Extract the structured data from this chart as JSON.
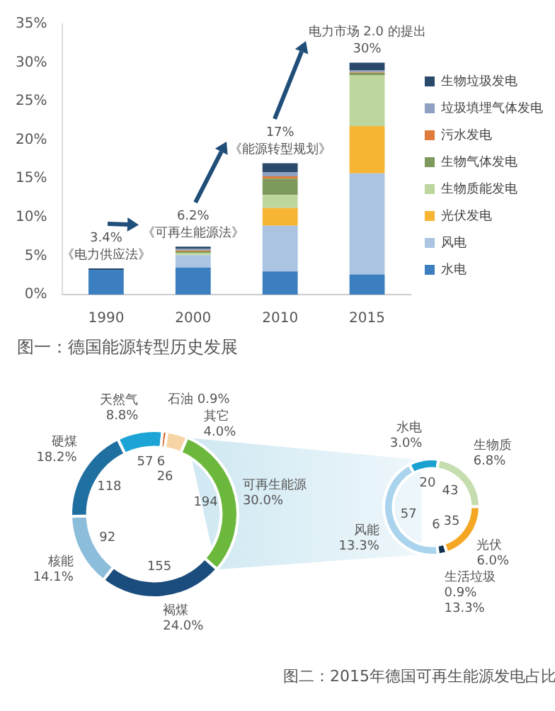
{
  "chart_data": [
    {
      "type": "bar",
      "title": "图一：德国能源转型历史发展",
      "categories": [
        "1990",
        "2000",
        "2010",
        "2015"
      ],
      "stacked": true,
      "legend": "right",
      "ylim": [
        0,
        35
      ],
      "yticks": [
        {
          "value": 0,
          "label": "0%"
        },
        {
          "value": 5,
          "label": "5%"
        },
        {
          "value": 10,
          "label": "10%"
        },
        {
          "value": 15,
          "label": "15%"
        },
        {
          "value": 20,
          "label": "20%"
        },
        {
          "value": 25,
          "label": "25%"
        },
        {
          "value": 30,
          "label": "30%"
        },
        {
          "value": 35,
          "label": "35%"
        }
      ],
      "series": [
        {
          "name": "水电",
          "color": "#3b7fc0",
          "values": [
            3.2,
            3.5,
            3.0,
            2.6
          ]
        },
        {
          "name": "风电",
          "color": "#aac4e2",
          "values": [
            0,
            1.6,
            5.9,
            13.1
          ]
        },
        {
          "name": "光伏发电",
          "color": "#f6b535",
          "values": [
            0,
            0,
            2.3,
            6.1
          ]
        },
        {
          "name": "生物质能发电",
          "color": "#bdd69e",
          "values": [
            0,
            0.3,
            1.7,
            6.6
          ]
        },
        {
          "name": "生物气体发电",
          "color": "#7d9a5c",
          "values": [
            0,
            0.2,
            2.1,
            0.3
          ]
        },
        {
          "name": "污水发电",
          "color": "#e07b3b",
          "values": [
            0,
            0.1,
            0.3,
            0.1
          ]
        },
        {
          "name": "垃圾填埋气体发电",
          "color": "#8fa0c0",
          "values": [
            0,
            0.2,
            0.5,
            0.2
          ]
        },
        {
          "name": "生物垃圾发电",
          "color": "#2b4a6b",
          "values": [
            0.2,
            0.3,
            1.2,
            1.0
          ]
        }
      ],
      "annotations": [
        {
          "text": "3.4%",
          "x": "1990",
          "y": 3.4
        },
        {
          "text": "《电力供应法》",
          "x": "1990",
          "y": 3.4
        },
        {
          "text": "6.2%",
          "x": "2000",
          "y": 6.2
        },
        {
          "text": "《可再生能源法》",
          "x": "2000",
          "y": 6.2
        },
        {
          "text": "17%",
          "x": "2010",
          "y": 17
        },
        {
          "text": "《能源转型规划》",
          "x": "2010",
          "y": 17
        },
        {
          "text": "电力市场 2.0 的提出",
          "x": "2015",
          "y": 30
        },
        {
          "text": "30%",
          "x": "2015",
          "y": 30
        }
      ]
    },
    {
      "type": "donut",
      "title": "图二：2015年德国可再生能源发电占比",
      "categories": [
        "天然气",
        "石油",
        "其它",
        "可再生能源",
        "褐煤",
        "核能",
        "硬煤"
      ],
      "values": [
        8.8,
        0.9,
        4.0,
        30.0,
        24.0,
        14.1,
        18.2
      ],
      "colors": [
        "#1ba4d5",
        "#e0662b",
        "#f7d4a6",
        "#6cb83d",
        "#1a4d7d",
        "#8cbdda",
        "#1f70a1"
      ],
      "value_labels": [
        "8.8%",
        "0.9%",
        "4.0%",
        "30.0%",
        "24.0%",
        "14.1%",
        "18.2%"
      ],
      "annotations": [
        {
          "text": "57",
          "x": "天然气"
        },
        {
          "text": "6",
          "x": "石油"
        },
        {
          "text": "26",
          "x": "其它"
        },
        {
          "text": "194",
          "x": "可再生能源"
        },
        {
          "text": "155",
          "x": "褐煤"
        },
        {
          "text": "92",
          "x": "核能"
        },
        {
          "text": "118",
          "x": "硬煤"
        }
      ]
    },
    {
      "type": "donut",
      "categories": [
        "水电",
        "生物质",
        "光伏",
        "生活垃圾",
        "风能"
      ],
      "values": [
        3.0,
        6.8,
        6.0,
        0.9,
        13.3
      ],
      "colors": [
        "#1aa0d0",
        "#c6ddaf",
        "#f5a724",
        "#0f304b",
        "#aad4ed"
      ],
      "value_labels": [
        "3.0%",
        "6.8%",
        "6.0%",
        "0.9%",
        "13.3%"
      ],
      "annotations": [
        {
          "text": "20",
          "x": "水电"
        },
        {
          "text": "43",
          "x": "生物质"
        },
        {
          "text": "35",
          "x": "光伏"
        },
        {
          "text": "6",
          "x": "生活垃圾"
        },
        {
          "text": "13.3%",
          "x": "生活垃圾"
        },
        {
          "text": "57",
          "x": "风能"
        }
      ]
    }
  ]
}
